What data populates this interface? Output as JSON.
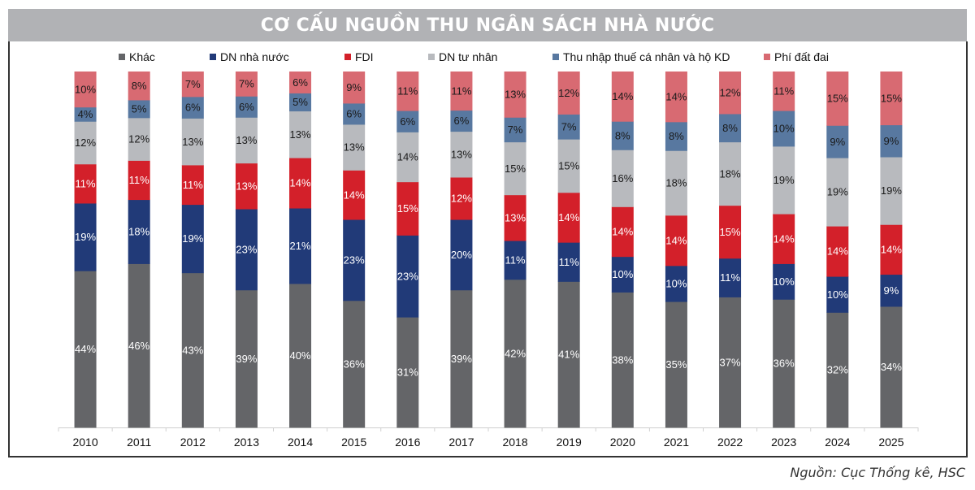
{
  "title": "CƠ CẤU NGUỒN THU NGÂN SÁCH NHÀ NƯỚC",
  "source": "Nguồn: Cục Thống kê, HSC",
  "chart_data": {
    "type": "bar",
    "stacked": true,
    "normalized": true,
    "title": "CƠ CẤU NGUỒN THU NGÂN SÁCH NHÀ NƯỚC",
    "xlabel": "",
    "ylabel": "",
    "ylim": [
      0,
      100
    ],
    "grid": false,
    "legend_position": "top",
    "value_suffix": "%",
    "categories": [
      "2010",
      "2011",
      "2012",
      "2013",
      "2014",
      "2015",
      "2016",
      "2017",
      "2018",
      "2019",
      "2020",
      "2021",
      "2022",
      "2023",
      "2024",
      "2025"
    ],
    "series": [
      {
        "name": "Khác",
        "color": "#646568",
        "label_color": "#ffffff",
        "values": [
          44,
          46,
          43,
          39,
          40,
          36,
          31,
          39,
          42,
          41,
          38,
          35,
          37,
          36,
          32,
          34
        ]
      },
      {
        "name": "DN nhà nước",
        "color": "#213a78",
        "label_color": "#ffffff",
        "values": [
          19,
          18,
          19,
          23,
          21,
          23,
          23,
          20,
          11,
          11,
          10,
          10,
          11,
          10,
          10,
          9
        ]
      },
      {
        "name": "FDI",
        "color": "#d3202a",
        "label_color": "#ffffff",
        "values": [
          11,
          11,
          11,
          13,
          14,
          14,
          15,
          12,
          13,
          14,
          14,
          14,
          15,
          14,
          14,
          14
        ]
      },
      {
        "name": "DN tư nhân",
        "color": "#b8babe",
        "label_color": "#1a1a1a",
        "values": [
          12,
          12,
          13,
          13,
          13,
          13,
          14,
          13,
          15,
          15,
          16,
          18,
          18,
          19,
          19,
          19
        ]
      },
      {
        "name": "Thu nhập thuế cá nhân và hộ KD",
        "color": "#5878a0",
        "label_color": "#1a1a1a",
        "values": [
          4,
          5,
          6,
          6,
          5,
          6,
          6,
          6,
          7,
          7,
          8,
          8,
          8,
          10,
          9,
          9
        ]
      },
      {
        "name": "Phí đất đai",
        "color": "#d86a72",
        "label_color": "#1a1a1a",
        "values": [
          10,
          8,
          7,
          7,
          6,
          9,
          11,
          11,
          13,
          12,
          14,
          14,
          12,
          11,
          15,
          15
        ]
      }
    ]
  }
}
